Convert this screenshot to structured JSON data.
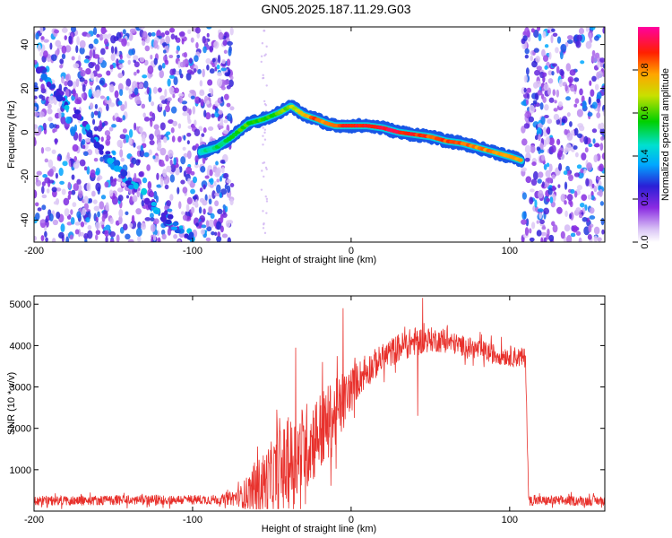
{
  "page_title": "GN05.2025.187.11.29.G03",
  "chart_data": [
    {
      "type": "heatmap",
      "xlabel": "Height of straight line (km)",
      "ylabel": "Frequency (Hz)",
      "xlim": [
        -200,
        160
      ],
      "ylim": [
        -50,
        48
      ],
      "x_ticks": [
        -200,
        -100,
        0,
        100
      ],
      "y_ticks": [
        -40,
        -20,
        0,
        20,
        40
      ],
      "colorbar": {
        "label": "Normalized spectral amplitude",
        "range": [
          0.0,
          1.0
        ],
        "ticks": [
          0.0,
          0.2,
          0.4,
          0.6,
          0.8
        ],
        "tick_labels": [
          "0.0",
          "0.2",
          "0.4",
          "0.6",
          "0.8"
        ]
      },
      "noise_regions": [
        [
          -200,
          -75
        ],
        [
          108,
          160
        ]
      ],
      "main_trace": {
        "x": [
          -95,
          -85,
          -75,
          -65,
          -55,
          -45,
          -38,
          -30,
          -22,
          -15,
          -10,
          0,
          10,
          20,
          30,
          40,
          50,
          60,
          70,
          80,
          90,
          100,
          108
        ],
        "frequency": [
          -9,
          -7,
          -2,
          4,
          6,
          9,
          12,
          8,
          6,
          4,
          3,
          3,
          3,
          2,
          0,
          -1,
          -2,
          -4,
          -5,
          -7,
          -9,
          -11,
          -13
        ],
        "amplitude": [
          0.45,
          0.5,
          0.55,
          0.6,
          0.55,
          0.6,
          0.65,
          0.75,
          0.85,
          0.8,
          0.85,
          0.9,
          0.9,
          0.92,
          0.9,
          0.88,
          0.85,
          0.85,
          0.82,
          0.8,
          0.8,
          0.78,
          0.75
        ]
      },
      "secondary_trace": {
        "x": [
          -197,
          -185,
          -170,
          -155,
          -140,
          -125,
          -110,
          -100
        ],
        "frequency": [
          30,
          18,
          5,
          -10,
          -22,
          -33,
          -43,
          -48
        ]
      }
    },
    {
      "type": "line",
      "xlabel": "Height of straight line (km)",
      "ylabel": "SNR (10 * v/v)",
      "xlim": [
        -200,
        160
      ],
      "ylim": [
        0,
        5200
      ],
      "x_ticks": [
        -200,
        -100,
        0,
        100
      ],
      "y_ticks": [
        1000,
        2000,
        3000,
        4000,
        5000
      ],
      "series": [
        {
          "color": "#e8312c",
          "envelope_x": [
            -200,
            -80,
            -70,
            -60,
            -50,
            -40,
            -30,
            -20,
            -10,
            -5,
            0,
            10,
            20,
            30,
            40,
            50,
            60,
            70,
            80,
            90,
            100,
            108,
            110,
            112,
            160
          ],
          "envelope_y": [
            250,
            280,
            350,
            550,
            800,
            1100,
            1500,
            1900,
            2300,
            2600,
            3000,
            3400,
            3700,
            3950,
            4100,
            4150,
            4100,
            4000,
            3900,
            3800,
            3750,
            3700,
            3700,
            250,
            250
          ],
          "noise_amplitude": [
            120,
            120,
            250,
            650,
            900,
            1100,
            1100,
            1000,
            900,
            700,
            500,
            400,
            350,
            350,
            350,
            300,
            280,
            250,
            250,
            250,
            250,
            250,
            250,
            120,
            120
          ],
          "spikes": [
            [
              -5,
              4900
            ],
            [
              -45,
              1950
            ],
            [
              -35,
              3950
            ],
            [
              -18,
              3600
            ],
            [
              45,
              5150
            ],
            [
              42,
              2300
            ]
          ]
        }
      ]
    }
  ]
}
